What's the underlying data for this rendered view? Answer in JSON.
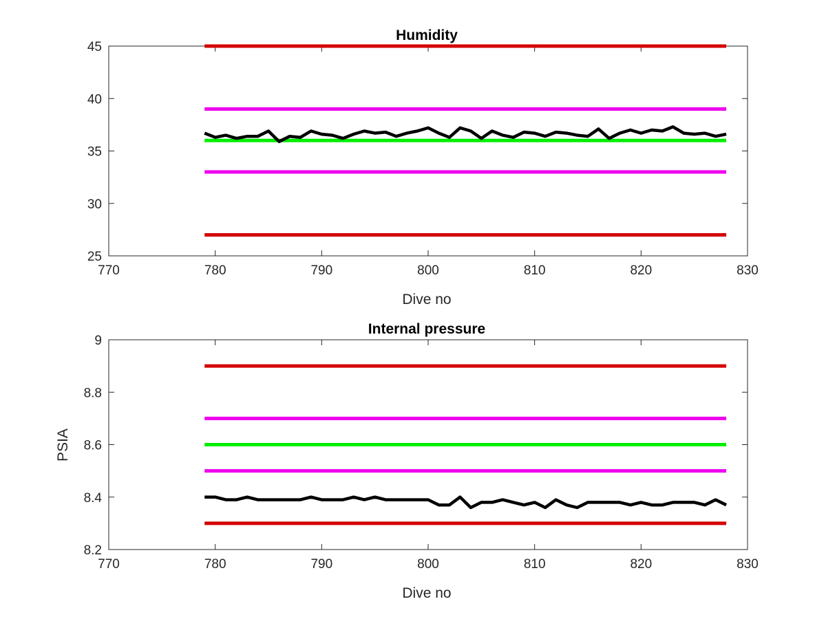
{
  "colors": {
    "limit_outer": "#d40000",
    "limit_inner": "#ee00ee",
    "nominal": "#00ee00",
    "measured": "#000000"
  },
  "chart_data": [
    {
      "type": "line",
      "title": "Humidity",
      "xlabel": "Dive no",
      "ylabel": "",
      "xlim": [
        770,
        830
      ],
      "ylim": [
        25,
        45
      ],
      "xticks": [
        770,
        780,
        790,
        800,
        810,
        820,
        830
      ],
      "yticks": [
        25,
        30,
        35,
        40,
        45
      ],
      "grid": false,
      "series": [
        {
          "role": "limit_outer",
          "x": [
            779,
            828
          ],
          "y": [
            45,
            45
          ]
        },
        {
          "role": "limit_inner",
          "x": [
            779,
            828
          ],
          "y": [
            39,
            39
          ]
        },
        {
          "role": "nominal",
          "x": [
            779,
            828
          ],
          "y": [
            36,
            36
          ]
        },
        {
          "role": "limit_inner",
          "x": [
            779,
            828
          ],
          "y": [
            33,
            33
          ]
        },
        {
          "role": "limit_outer",
          "x": [
            779,
            828
          ],
          "y": [
            27,
            27
          ]
        },
        {
          "role": "measured",
          "x": [
            779,
            780,
            781,
            782,
            783,
            784,
            785,
            786,
            787,
            788,
            789,
            790,
            791,
            792,
            793,
            794,
            795,
            796,
            797,
            798,
            799,
            800,
            801,
            802,
            803,
            804,
            805,
            806,
            807,
            808,
            809,
            810,
            811,
            812,
            813,
            814,
            815,
            816,
            817,
            818,
            819,
            820,
            821,
            822,
            823,
            824,
            825,
            826,
            827,
            828
          ],
          "y": [
            36.7,
            36.3,
            36.5,
            36.2,
            36.4,
            36.4,
            36.9,
            35.9,
            36.4,
            36.3,
            36.9,
            36.6,
            36.5,
            36.2,
            36.6,
            36.9,
            36.7,
            36.8,
            36.4,
            36.7,
            36.9,
            37.2,
            36.7,
            36.3,
            37.2,
            36.9,
            36.2,
            36.9,
            36.5,
            36.3,
            36.8,
            36.7,
            36.4,
            36.8,
            36.7,
            36.5,
            36.4,
            37.1,
            36.2,
            36.7,
            37.0,
            36.7,
            37.0,
            36.9,
            37.3,
            36.7,
            36.6,
            36.7,
            36.4,
            36.6
          ]
        }
      ]
    },
    {
      "type": "line",
      "title": "Internal pressure",
      "xlabel": "Dive no",
      "ylabel": "PSIA",
      "xlim": [
        770,
        830
      ],
      "ylim": [
        8.2,
        9
      ],
      "xticks": [
        770,
        780,
        790,
        800,
        810,
        820,
        830
      ],
      "yticks": [
        8.2,
        8.4,
        8.6,
        8.8,
        9
      ],
      "grid": false,
      "series": [
        {
          "role": "limit_outer",
          "x": [
            779,
            828
          ],
          "y": [
            8.9,
            8.9
          ]
        },
        {
          "role": "limit_inner",
          "x": [
            779,
            828
          ],
          "y": [
            8.7,
            8.7
          ]
        },
        {
          "role": "nominal",
          "x": [
            779,
            828
          ],
          "y": [
            8.6,
            8.6
          ]
        },
        {
          "role": "limit_inner",
          "x": [
            779,
            828
          ],
          "y": [
            8.5,
            8.5
          ]
        },
        {
          "role": "limit_outer",
          "x": [
            779,
            828
          ],
          "y": [
            8.3,
            8.3
          ]
        },
        {
          "role": "measured",
          "x": [
            779,
            780,
            781,
            782,
            783,
            784,
            785,
            786,
            787,
            788,
            789,
            790,
            791,
            792,
            793,
            794,
            795,
            796,
            797,
            798,
            799,
            800,
            801,
            802,
            803,
            804,
            805,
            806,
            807,
            808,
            809,
            810,
            811,
            812,
            813,
            814,
            815,
            816,
            817,
            818,
            819,
            820,
            821,
            822,
            823,
            824,
            825,
            826,
            827,
            828
          ],
          "y": [
            8.4,
            8.4,
            8.39,
            8.39,
            8.4,
            8.39,
            8.39,
            8.39,
            8.39,
            8.39,
            8.4,
            8.39,
            8.39,
            8.39,
            8.4,
            8.39,
            8.4,
            8.39,
            8.39,
            8.39,
            8.39,
            8.39,
            8.37,
            8.37,
            8.4,
            8.36,
            8.38,
            8.38,
            8.39,
            8.38,
            8.37,
            8.38,
            8.36,
            8.39,
            8.37,
            8.36,
            8.38,
            8.38,
            8.38,
            8.38,
            8.37,
            8.38,
            8.37,
            8.37,
            8.38,
            8.38,
            8.38,
            8.37,
            8.39,
            8.37
          ]
        }
      ]
    }
  ]
}
